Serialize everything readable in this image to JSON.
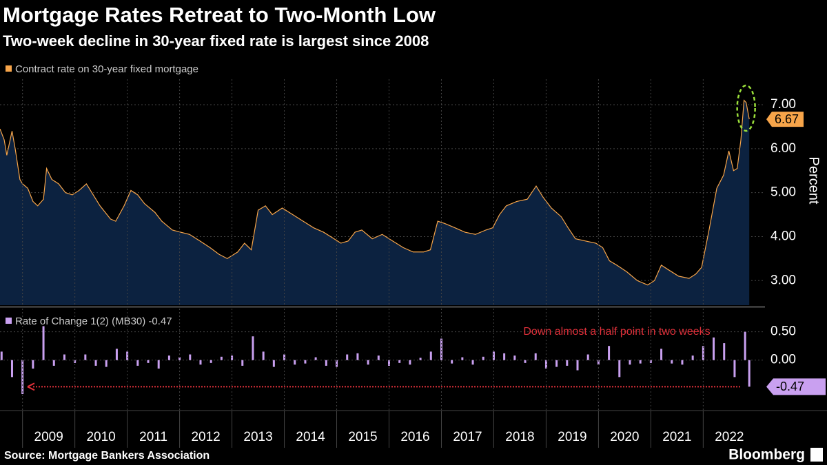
{
  "title": "Mortgage Rates Retreat to Two-Month Low",
  "subtitle": "Two-week decline in 30-year fixed rate is largest since 2008",
  "source": "Source: Mortgage Bankers Association",
  "brand": "Bloomberg",
  "chart_data": [
    {
      "type": "area",
      "y_label": "Percent",
      "xlim": [
        2008.57,
        2023.18
      ],
      "ylim": [
        2.44,
        7.58
      ],
      "yticks": [
        {
          "value": 3,
          "label": "3.00"
        },
        {
          "value": 4,
          "label": "4.00"
        },
        {
          "value": 5,
          "label": "5.00"
        },
        {
          "value": 6,
          "label": "6.00"
        },
        {
          "value": 7,
          "label": "7.00"
        }
      ],
      "grid": true,
      "series": [
        {
          "name": "Contract rate on 30-year fixed mortgage",
          "color": "#f7a54a",
          "fill": "#0c2240",
          "x": [
            2008.57,
            2008.65,
            2008.7,
            2008.8,
            2008.86,
            2008.95,
            2009.0,
            2009.1,
            2009.2,
            2009.29,
            2009.4,
            2009.46,
            2009.56,
            2009.69,
            2009.82,
            2009.95,
            2010.08,
            2010.22,
            2010.35,
            2010.48,
            2010.68,
            2010.78,
            2010.94,
            2011.07,
            2011.2,
            2011.33,
            2011.53,
            2011.66,
            2011.86,
            2012.02,
            2012.19,
            2012.39,
            2012.58,
            2012.75,
            2012.91,
            2013.11,
            2013.24,
            2013.37,
            2013.5,
            2013.64,
            2013.77,
            2013.96,
            2014.16,
            2014.36,
            2014.56,
            2014.75,
            2014.95,
            2015.08,
            2015.22,
            2015.35,
            2015.48,
            2015.68,
            2015.87,
            2016.07,
            2016.27,
            2016.46,
            2016.66,
            2016.79,
            2016.93,
            2017.06,
            2017.26,
            2017.45,
            2017.65,
            2017.85,
            2017.98,
            2018.11,
            2018.24,
            2018.44,
            2018.64,
            2018.81,
            2018.94,
            2019.1,
            2019.29,
            2019.42,
            2019.56,
            2019.75,
            2019.95,
            2020.08,
            2020.21,
            2020.35,
            2020.54,
            2020.74,
            2020.94,
            2021.07,
            2021.2,
            2021.33,
            2021.53,
            2021.73,
            2021.86,
            2021.97,
            2022.12,
            2022.26,
            2022.39,
            2022.49,
            2022.58,
            2022.65,
            2022.72,
            2022.78,
            2022.82,
            2022.88
          ],
          "values": [
            6.45,
            6.2,
            5.85,
            6.4,
            6.0,
            5.3,
            5.2,
            5.1,
            4.8,
            4.7,
            4.85,
            5.55,
            5.3,
            5.2,
            5.0,
            4.95,
            5.05,
            5.2,
            4.95,
            4.7,
            4.4,
            4.35,
            4.7,
            5.05,
            4.95,
            4.75,
            4.55,
            4.35,
            4.15,
            4.1,
            4.05,
            3.9,
            3.75,
            3.6,
            3.5,
            3.65,
            3.85,
            3.7,
            4.6,
            4.7,
            4.5,
            4.65,
            4.5,
            4.35,
            4.2,
            4.1,
            3.95,
            3.85,
            3.9,
            4.1,
            4.15,
            3.95,
            4.05,
            3.9,
            3.75,
            3.65,
            3.65,
            3.7,
            4.35,
            4.3,
            4.2,
            4.1,
            4.05,
            4.15,
            4.2,
            4.5,
            4.7,
            4.8,
            4.85,
            5.15,
            4.9,
            4.65,
            4.45,
            4.2,
            3.95,
            3.9,
            3.85,
            3.75,
            3.45,
            3.35,
            3.2,
            3.0,
            2.9,
            3.0,
            3.35,
            3.25,
            3.1,
            3.05,
            3.15,
            3.3,
            4.2,
            5.1,
            5.4,
            5.95,
            5.5,
            5.55,
            6.2,
            7.1,
            7.05,
            6.67
          ]
        }
      ]
    },
    {
      "type": "bar",
      "annotation": "Down almost a half point in two weeks",
      "xlim": [
        2008.57,
        2023.18
      ],
      "xticks": [
        2009,
        2010,
        2011,
        2012,
        2013,
        2014,
        2015,
        2016,
        2017,
        2018,
        2019,
        2020,
        2021,
        2022
      ],
      "ylim": [
        -0.88,
        0.91
      ],
      "yticks": [
        {
          "value": 0,
          "label": "0.00"
        },
        {
          "value": 0.5,
          "label": "0.50"
        }
      ],
      "grid": true,
      "series": [
        {
          "name": "Rate of Change 1(2) (MB30) -0.47",
          "color": "#c9a0f0",
          "x": [
            2008.6,
            2008.8,
            2009.0,
            2009.2,
            2009.4,
            2009.6,
            2009.8,
            2010.0,
            2010.2,
            2010.4,
            2010.6,
            2010.8,
            2011.0,
            2011.2,
            2011.4,
            2011.6,
            2011.8,
            2012.0,
            2012.2,
            2012.4,
            2012.6,
            2012.8,
            2013.0,
            2013.2,
            2013.4,
            2013.6,
            2013.8,
            2014.0,
            2014.2,
            2014.4,
            2014.6,
            2014.8,
            2015.0,
            2015.2,
            2015.4,
            2015.6,
            2015.8,
            2016.0,
            2016.2,
            2016.4,
            2016.6,
            2016.8,
            2017.0,
            2017.2,
            2017.4,
            2017.6,
            2017.8,
            2018.0,
            2018.2,
            2018.4,
            2018.6,
            2018.8,
            2019.0,
            2019.2,
            2019.4,
            2019.6,
            2019.8,
            2020.0,
            2020.2,
            2020.4,
            2020.6,
            2020.8,
            2021.0,
            2021.2,
            2021.4,
            2021.6,
            2021.8,
            2022.0,
            2022.2,
            2022.4,
            2022.6,
            2022.8,
            2022.88
          ],
          "values": [
            0.15,
            -0.3,
            -0.6,
            -0.15,
            0.6,
            -0.1,
            0.1,
            -0.05,
            0.1,
            -0.1,
            -0.12,
            0.2,
            0.15,
            -0.1,
            -0.05,
            -0.15,
            0.08,
            0.05,
            0.1,
            -0.08,
            -0.05,
            0.06,
            0.08,
            -0.1,
            0.42,
            0.15,
            -0.12,
            0.1,
            -0.08,
            -0.06,
            0.05,
            -0.1,
            -0.12,
            0.1,
            0.12,
            -0.08,
            0.08,
            -0.1,
            -0.05,
            -0.08,
            0.04,
            0.15,
            0.38,
            -0.06,
            0.05,
            -0.08,
            0.06,
            0.15,
            0.12,
            0.08,
            -0.05,
            0.12,
            -0.15,
            -0.12,
            -0.1,
            -0.18,
            0.1,
            -0.08,
            0.25,
            -0.3,
            -0.08,
            -0.06,
            -0.05,
            0.2,
            -0.06,
            -0.08,
            0.08,
            0.25,
            0.4,
            0.3,
            -0.3,
            0.5,
            -0.47
          ]
        }
      ]
    }
  ]
}
